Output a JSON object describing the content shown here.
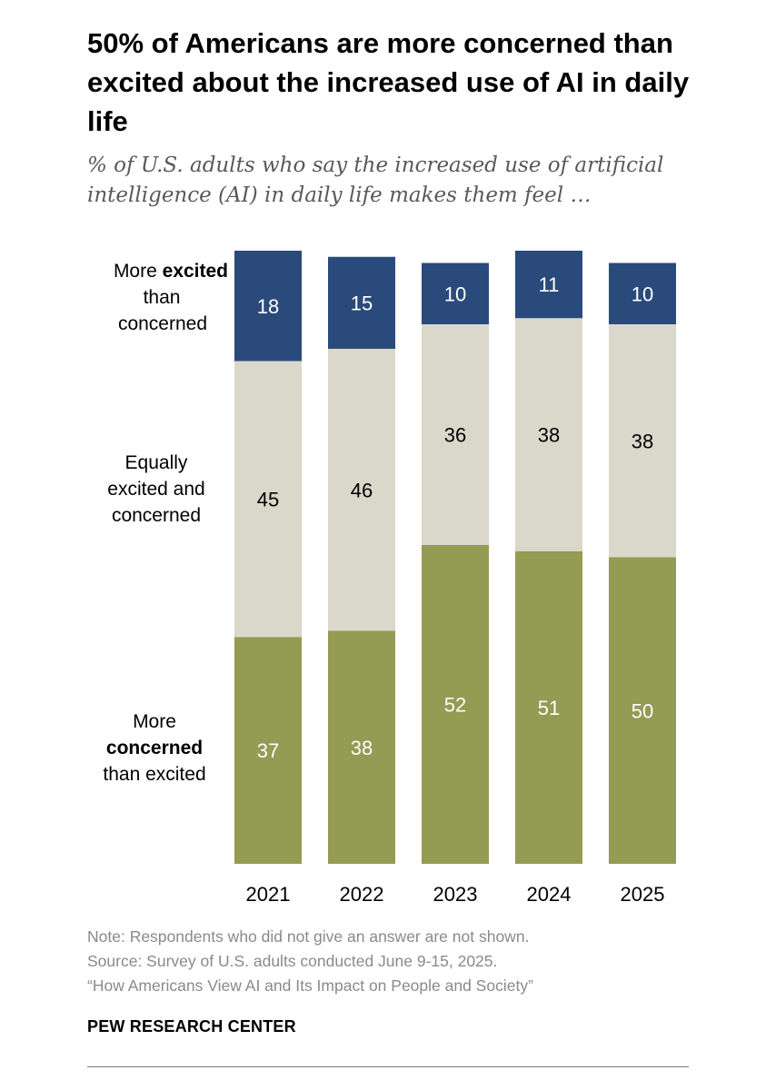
{
  "chart_data": {
    "type": "bar",
    "stacked": true,
    "title": "50% of Americans are more concerned than excited about the increased use of AI in daily life",
    "subtitle": "% of U.S. adults who say the increased use of artificial intelligence (AI) in daily life makes them feel …",
    "categories": [
      "2021",
      "2022",
      "2023",
      "2024",
      "2025"
    ],
    "series": [
      {
        "name": "More concerned than excited",
        "color": "#949B53",
        "values": [
          37,
          38,
          52,
          51,
          50
        ],
        "label_color": "#ffffff"
      },
      {
        "name": "Equally excited and concerned",
        "color": "#DAD8CB",
        "values": [
          45,
          46,
          36,
          38,
          38
        ],
        "label_color": "#000000"
      },
      {
        "name": "More excited than concerned",
        "color": "#2A4A7B",
        "values": [
          18,
          15,
          10,
          11,
          10
        ],
        "label_color": "#ffffff"
      }
    ],
    "legend": [
      {
        "lines": [
          {
            "text": "More ",
            "bold": false
          },
          {
            "text": "excited",
            "bold": true
          }
        ],
        "rest": [
          "than",
          "concerned"
        ]
      },
      {
        "lines": [
          {
            "text": "Equally",
            "bold": false
          }
        ],
        "rest": [
          "excited and",
          "concerned"
        ]
      },
      {
        "lines": [
          {
            "text": "More",
            "bold": false
          }
        ],
        "rest_bold": "concerned",
        "rest": [
          "than excited"
        ]
      }
    ],
    "legend_placement": "left",
    "ylim": [
      0,
      100
    ],
    "grid": false
  },
  "footer": {
    "note": "Note: Respondents who did not give an answer are not shown.",
    "source": "Source: Survey of U.S. adults conducted June 9-15, 2025.",
    "report": "“How Americans View AI and Its Impact on People and Society”",
    "org": "PEW RESEARCH CENTER"
  }
}
